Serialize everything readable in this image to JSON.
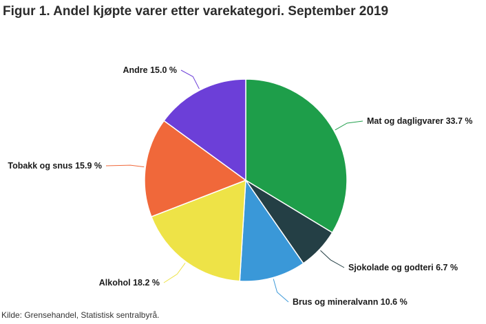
{
  "title": "Figur 1. Andel kjøpte varer etter varekategori. September 2019",
  "source": "Kilde: Grensehandel, Statistisk sentralbyrå.",
  "chart_data": {
    "type": "pie",
    "title": "Figur 1. Andel kjøpte varer etter varekategori. September 2019",
    "unit": "%",
    "slices": [
      {
        "label": "Mat og dagligvarer",
        "value": 33.7,
        "value_label": "33.7 %",
        "color": "#1e9e4a"
      },
      {
        "label": "Sjokolade og godteri",
        "value": 6.7,
        "value_label": "6.7 %",
        "color": "#243f45"
      },
      {
        "label": "Brus og mineralvann",
        "value": 10.6,
        "value_label": "10.6 %",
        "color": "#3a98d8"
      },
      {
        "label": "Alkohol",
        "value": 18.2,
        "value_label": "18.2 %",
        "color": "#eee347"
      },
      {
        "label": "Tobakk og snus",
        "value": 15.9,
        "value_label": "15.9 %",
        "color": "#f0683a"
      },
      {
        "label": "Andre",
        "value": 15.0,
        "value_label": "15.0 %",
        "color": "#6c3fd8"
      }
    ]
  }
}
